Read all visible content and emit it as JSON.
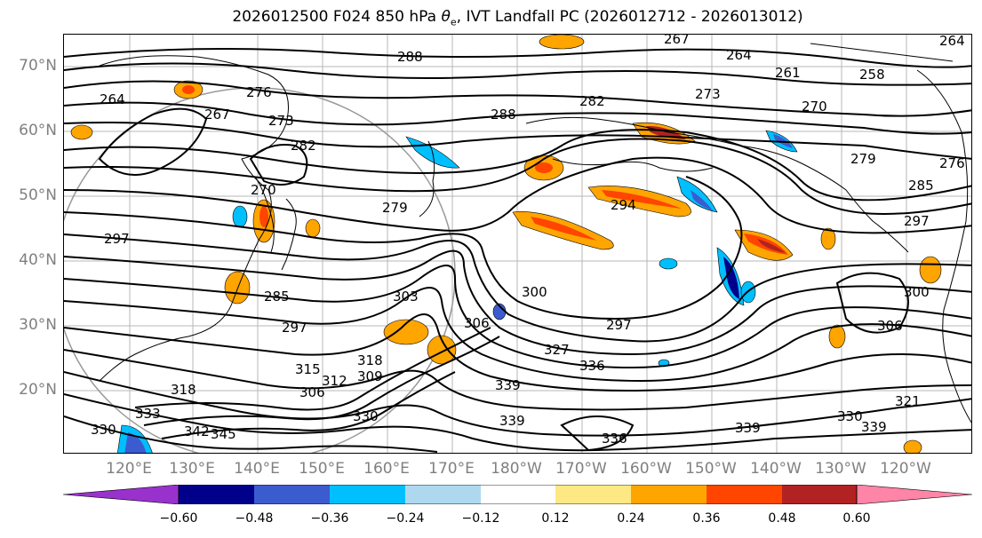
{
  "title": {
    "prefix": "2026012500 F024 850 hPa ",
    "theta": "θ",
    "theta_sub": "e",
    "suffix": ", IVT Landfall PC (2026012712 - 2026013012)"
  },
  "map": {
    "lat_labels": [
      "70°N",
      "60°N",
      "50°N",
      "40°N",
      "30°N",
      "20°N"
    ],
    "lon_labels": [
      "120°E",
      "130°E",
      "140°E",
      "150°E",
      "160°E",
      "170°E",
      "180°W",
      "170°W",
      "160°W",
      "150°W",
      "140°W",
      "130°W",
      "120°W"
    ],
    "contour_labels": [
      "267",
      "264",
      "264",
      "258",
      "261",
      "288",
      "276",
      "273",
      "270",
      "264",
      "267",
      "273",
      "282",
      "282",
      "288",
      "279",
      "276",
      "279",
      "285",
      "294",
      "297",
      "285",
      "297",
      "300",
      "306",
      "297",
      "327",
      "336",
      "306",
      "315",
      "318",
      "312",
      "309",
      "306",
      "318",
      "339",
      "330",
      "333",
      "342",
      "345",
      "330",
      "339",
      "336",
      "339",
      "330",
      "321",
      "339",
      "297",
      "303",
      "300",
      "270"
    ],
    "shading": {
      "positive_colors": [
        "#fde883",
        "#ffa500",
        "#ff4500",
        "#b22222"
      ],
      "negative_colors": [
        "#add8f0",
        "#00bfff",
        "#3b5ccf",
        "#00008b"
      ]
    }
  },
  "colorbar": {
    "ticks": [
      "−0.60",
      "−0.48",
      "−0.36",
      "−0.24",
      "−0.12",
      "0.12",
      "0.24",
      "0.36",
      "0.48",
      "0.60"
    ],
    "colors": [
      "#9932cc",
      "#00008b",
      "#3b5ccf",
      "#00bfff",
      "#add8f0",
      "#ffffff",
      "#fde883",
      "#ffa500",
      "#ff4500",
      "#b22222",
      "#ff85a8"
    ]
  }
}
